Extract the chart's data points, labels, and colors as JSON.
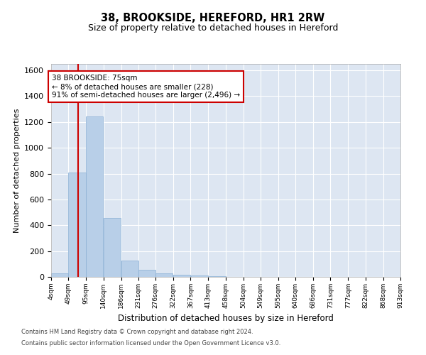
{
  "title": "38, BROOKSIDE, HEREFORD, HR1 2RW",
  "subtitle": "Size of property relative to detached houses in Hereford",
  "xlabel": "Distribution of detached houses by size in Hereford",
  "ylabel": "Number of detached properties",
  "bar_color": "#b8cfe8",
  "bar_edge_color": "#8aafd4",
  "background_color": "#dde6f2",
  "grid_color": "#ffffff",
  "bin_edges": [
    4,
    49,
    95,
    140,
    186,
    231,
    276,
    322,
    367,
    413,
    458,
    504,
    549,
    595,
    640,
    686,
    731,
    777,
    822,
    868,
    913
  ],
  "bar_heights": [
    25,
    810,
    1245,
    455,
    125,
    57,
    25,
    15,
    10,
    5,
    2,
    0,
    0,
    0,
    0,
    0,
    0,
    0,
    0,
    0
  ],
  "property_size": 75,
  "annotation_line1": "38 BROOKSIDE: 75sqm",
  "annotation_line2": "← 8% of detached houses are smaller (228)",
  "annotation_line3": "91% of semi-detached houses are larger (2,496) →",
  "annotation_box_color": "#ffffff",
  "annotation_box_edge": "#cc0000",
  "vline_color": "#cc0000",
  "ylim": [
    0,
    1650
  ],
  "yticks": [
    0,
    200,
    400,
    600,
    800,
    1000,
    1200,
    1400,
    1600
  ],
  "footer_line1": "Contains HM Land Registry data © Crown copyright and database right 2024.",
  "footer_line2": "Contains public sector information licensed under the Open Government Licence v3.0."
}
